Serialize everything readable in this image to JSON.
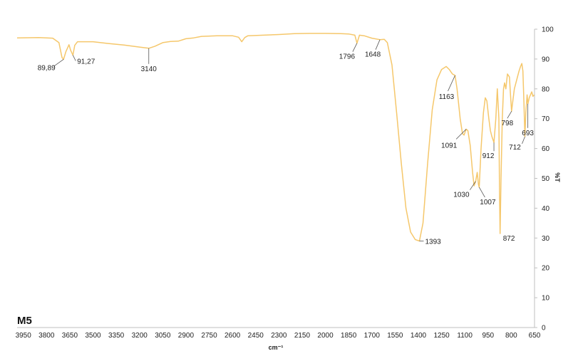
{
  "chart_data": {
    "type": "line",
    "sample_label": "M5",
    "xlabel": "cm⁻¹",
    "ylabel": "%T",
    "xlim": [
      3990,
      650
    ],
    "ylim": [
      0,
      100
    ],
    "x_ticks": [
      3950,
      3800,
      3650,
      3500,
      3350,
      3200,
      3050,
      2900,
      2750,
      2600,
      2450,
      2300,
      2150,
      2000,
      1850,
      1700,
      1550,
      1400,
      1250,
      1100,
      950,
      800,
      650
    ],
    "y_ticks": [
      0,
      10,
      20,
      30,
      40,
      50,
      60,
      70,
      80,
      90,
      100
    ],
    "grid": false,
    "legend": "none",
    "line_color": "#F5C76B",
    "series": [
      {
        "points": [
          [
            3990,
            97.1
          ],
          [
            3850,
            97.2
          ],
          [
            3760,
            97.0
          ],
          [
            3720,
            95.5
          ],
          [
            3700,
            90.5
          ],
          [
            3690,
            89.9
          ],
          [
            3675,
            92.5
          ],
          [
            3655,
            94.8
          ],
          [
            3645,
            93.0
          ],
          [
            3630,
            91.3
          ],
          [
            3618,
            94.6
          ],
          [
            3600,
            95.8
          ],
          [
            3500,
            95.8
          ],
          [
            3400,
            95.2
          ],
          [
            3300,
            94.7
          ],
          [
            3200,
            94.0
          ],
          [
            3140,
            93.6
          ],
          [
            3100,
            94.3
          ],
          [
            3050,
            95.5
          ],
          [
            3000,
            95.9
          ],
          [
            2950,
            96.0
          ],
          [
            2900,
            96.8
          ],
          [
            2850,
            97.1
          ],
          [
            2800,
            97.6
          ],
          [
            2700,
            97.8
          ],
          [
            2600,
            97.8
          ],
          [
            2560,
            97.3
          ],
          [
            2540,
            95.8
          ],
          [
            2520,
            97.2
          ],
          [
            2500,
            97.8
          ],
          [
            2400,
            98.0
          ],
          [
            2300,
            98.2
          ],
          [
            2200,
            98.5
          ],
          [
            2100,
            98.6
          ],
          [
            2000,
            98.6
          ],
          [
            1900,
            98.5
          ],
          [
            1850,
            98.4
          ],
          [
            1810,
            98.0
          ],
          [
            1796,
            95.3
          ],
          [
            1780,
            98.0
          ],
          [
            1750,
            97.8
          ],
          [
            1700,
            97.0
          ],
          [
            1648,
            96.5
          ],
          [
            1620,
            96.6
          ],
          [
            1600,
            95.5
          ],
          [
            1570,
            88.0
          ],
          [
            1540,
            72.0
          ],
          [
            1510,
            55.0
          ],
          [
            1480,
            40.0
          ],
          [
            1450,
            32.0
          ],
          [
            1420,
            29.5
          ],
          [
            1393,
            29.0
          ],
          [
            1370,
            35.0
          ],
          [
            1340,
            55.0
          ],
          [
            1310,
            73.0
          ],
          [
            1280,
            83.0
          ],
          [
            1250,
            86.5
          ],
          [
            1220,
            87.5
          ],
          [
            1200,
            86.5
          ],
          [
            1180,
            85.0
          ],
          [
            1163,
            84.5
          ],
          [
            1150,
            80.0
          ],
          [
            1130,
            70.0
          ],
          [
            1115,
            65.0
          ],
          [
            1105,
            64.5
          ],
          [
            1091,
            66.5
          ],
          [
            1080,
            66.0
          ],
          [
            1065,
            61.0
          ],
          [
            1050,
            52.0
          ],
          [
            1040,
            47.5
          ],
          [
            1030,
            49.0
          ],
          [
            1020,
            52.0
          ],
          [
            1012,
            48.0
          ],
          [
            1007,
            47.0
          ],
          [
            995,
            60.0
          ],
          [
            980,
            72.0
          ],
          [
            968,
            77.0
          ],
          [
            958,
            76.0
          ],
          [
            945,
            70.0
          ],
          [
            935,
            66.0
          ],
          [
            925,
            64.0
          ],
          [
            912,
            62.0
          ],
          [
            900,
            70.0
          ],
          [
            890,
            80.0
          ],
          [
            880,
            70.0
          ],
          [
            876,
            45.0
          ],
          [
            872,
            31.5
          ],
          [
            866,
            50.0
          ],
          [
            858,
            70.0
          ],
          [
            850,
            80.0
          ],
          [
            843,
            82.0
          ],
          [
            835,
            80.0
          ],
          [
            825,
            85.0
          ],
          [
            812,
            84.0
          ],
          [
            805,
            78.0
          ],
          [
            798,
            72.5
          ],
          [
            790,
            76.0
          ],
          [
            780,
            80.0
          ],
          [
            770,
            82.0
          ],
          [
            760,
            84.0
          ],
          [
            750,
            86.0
          ],
          [
            740,
            87.5
          ],
          [
            732,
            88.5
          ],
          [
            725,
            86.0
          ],
          [
            718,
            75.0
          ],
          [
            712,
            64.0
          ],
          [
            706,
            72.0
          ],
          [
            698,
            78.0
          ],
          [
            693,
            75.0
          ],
          [
            684,
            77.0
          ],
          [
            676,
            78.0
          ],
          [
            668,
            79.0
          ],
          [
            660,
            77.5
          ],
          [
            652,
            78.0
          ]
        ]
      }
    ],
    "annotations": [
      {
        "label": "89,89",
        "x": 3690,
        "y": 89.9
      },
      {
        "label": "91,27",
        "x": 3630,
        "y": 91.3
      },
      {
        "label": "3140",
        "x": 3140,
        "y": 93.6
      },
      {
        "label": "1796",
        "x": 1796,
        "y": 95.3
      },
      {
        "label": "1648",
        "x": 1648,
        "y": 96.5
      },
      {
        "label": "1393",
        "x": 1393,
        "y": 29.0
      },
      {
        "label": "1163",
        "x": 1163,
        "y": 84.5
      },
      {
        "label": "1091",
        "x": 1091,
        "y": 66.5
      },
      {
        "label": "1030",
        "x": 1030,
        "y": 49.0
      },
      {
        "label": "1007",
        "x": 1007,
        "y": 47.0
      },
      {
        "label": "912",
        "x": 912,
        "y": 62.0
      },
      {
        "label": "872",
        "x": 872,
        "y": 31.5
      },
      {
        "label": "798",
        "x": 798,
        "y": 72.5
      },
      {
        "label": "712",
        "x": 712,
        "y": 64.0
      },
      {
        "label": "693",
        "x": 693,
        "y": 75.0
      }
    ]
  }
}
